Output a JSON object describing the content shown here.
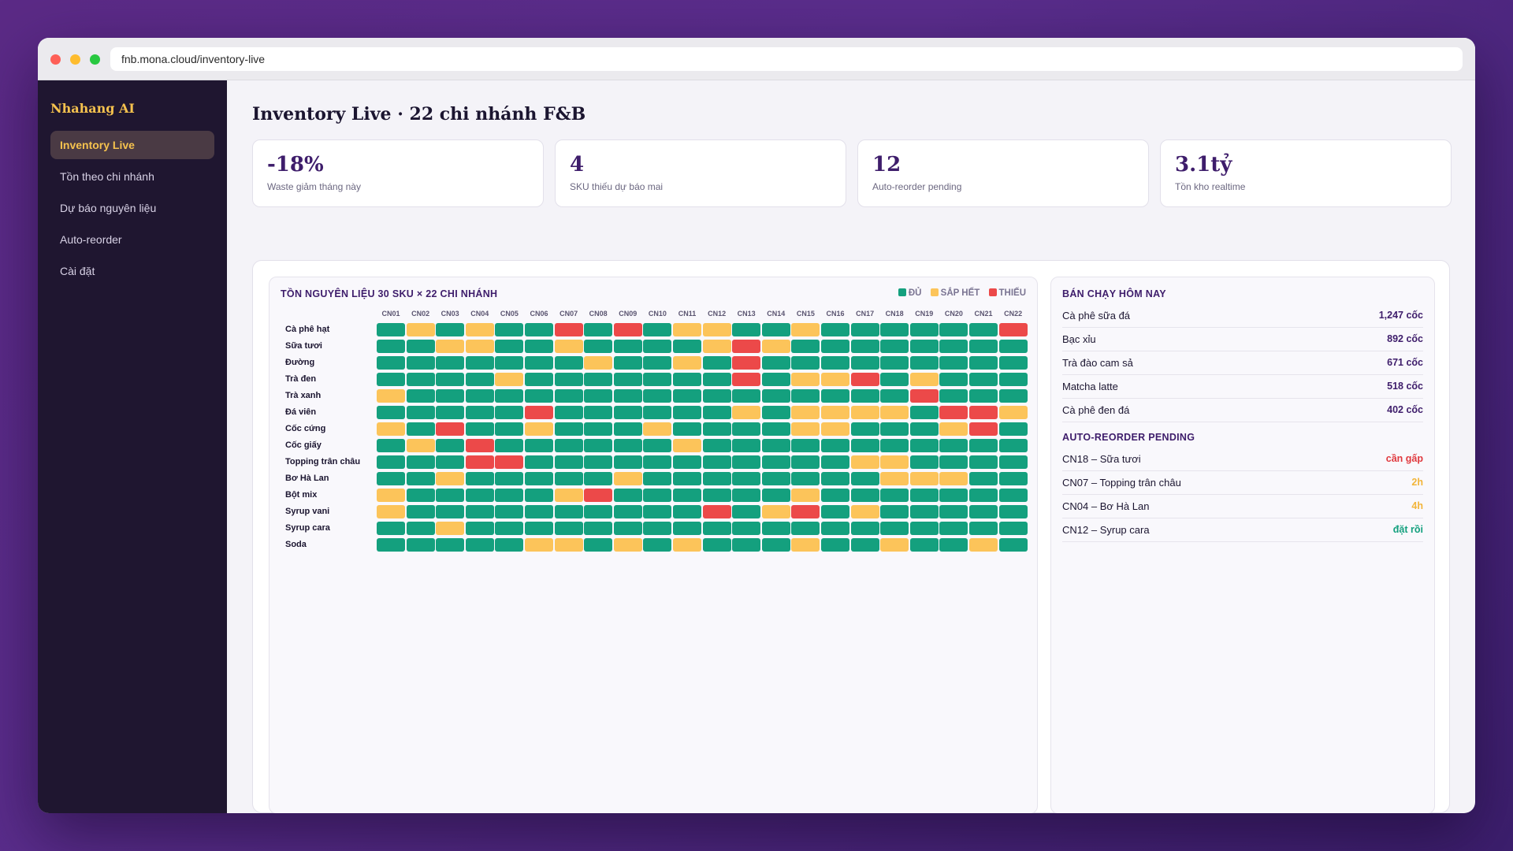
{
  "browser": {
    "url": "fnb.mona.cloud/inventory-live"
  },
  "sidebar": {
    "brand": "Nhahang AI",
    "items": [
      {
        "label": "Inventory Live",
        "active": true
      },
      {
        "label": "Tồn theo chi nhánh",
        "active": false
      },
      {
        "label": "Dự báo nguyên liệu",
        "active": false
      },
      {
        "label": "Auto-reorder",
        "active": false
      },
      {
        "label": "Cài đặt",
        "active": false
      }
    ]
  },
  "page": {
    "title": "Inventory Live · 22 chi nhánh F&B"
  },
  "stats": [
    {
      "value": "-18%",
      "label": "Waste giảm tháng này"
    },
    {
      "value": "4",
      "label": "SKU thiếu dự báo mai"
    },
    {
      "value": "12",
      "label": "Auto-reorder pending"
    },
    {
      "value": "3.1tỷ",
      "label": "Tồn kho realtime"
    }
  ],
  "heatmap": {
    "title": "TỒN NGUYÊN LIỆU 30 SKU × 22 CHI NHÁNH",
    "legend": [
      {
        "key": "G",
        "label": "ĐỦ",
        "color": "#14a07e"
      },
      {
        "key": "Y",
        "label": "SẮP HẾT",
        "color": "#fcc45a"
      },
      {
        "key": "R",
        "label": "THIẾU",
        "color": "#ec4949"
      }
    ],
    "columns": [
      "CN01",
      "CN02",
      "CN03",
      "CN04",
      "CN05",
      "CN06",
      "CN07",
      "CN08",
      "CN09",
      "CN10",
      "CN11",
      "CN12",
      "CN13",
      "CN14",
      "CN15",
      "CN16",
      "CN17",
      "CN18",
      "CN19",
      "CN20",
      "CN21",
      "CN22"
    ],
    "rows": [
      {
        "label": "Cà phê hạt",
        "cells": "GYGYGGRGRGYYGGYGGGGGGR"
      },
      {
        "label": "Sữa tươi",
        "cells": "GGYYGGYGGGGYRYGGGGGGGG"
      },
      {
        "label": "Đường",
        "cells": "GGGGGGGYGGYGRGGGGGGGGG"
      },
      {
        "label": "Trà đen",
        "cells": "GGGGYGGGGGGGRGYYRGYGGG"
      },
      {
        "label": "Trà xanh",
        "cells": "YGGGGGGGGGGGGGGGGGRGGG"
      },
      {
        "label": "Đá viên",
        "cells": "GGGGGRGGGGGGYGYYYYGRRY"
      },
      {
        "label": "Cốc cứng",
        "cells": "YGRGGYGGGYGGGGYYGGGYRG"
      },
      {
        "label": "Cốc giấy",
        "cells": "GYGRGGGGGGYGGGGGGGGGGG"
      },
      {
        "label": "Topping trân châu",
        "cells": "GGGRRGGGGGGGGGGGYYGGGG"
      },
      {
        "label": "Bơ Hà Lan",
        "cells": "GGYGGGGGYGGGGGGGGYYYGG"
      },
      {
        "label": "Bột mix",
        "cells": "YGGGGGYRGGGGGGYGGGGGGG"
      },
      {
        "label": "Syrup vani",
        "cells": "YGGGGGGGGGGRGYRGYGGGGG"
      },
      {
        "label": "Syrup cara",
        "cells": "GGYGGGGGGGGGGGGGGGGGGG"
      },
      {
        "label": "Soda",
        "cells": "GGGGGYYGYGYGGGYGGYGGYG"
      }
    ]
  },
  "best_sellers": {
    "title": "BÁN CHẠY HÔM NAY",
    "items": [
      {
        "name": "Cà phê sữa đá",
        "qty": "1,247 cốc"
      },
      {
        "name": "Bạc xỉu",
        "qty": "892 cốc"
      },
      {
        "name": "Trà đào cam sả",
        "qty": "671 cốc"
      },
      {
        "name": "Matcha latte",
        "qty": "518 cốc"
      },
      {
        "name": "Cà phê đen đá",
        "qty": "402 cốc"
      }
    ]
  },
  "reorder": {
    "title": "AUTO-REORDER PENDING",
    "items": [
      {
        "name": "CN18 – Sữa tươi",
        "status": "cần gấp",
        "color": "#e0393e"
      },
      {
        "name": "CN07 – Topping trân châu",
        "status": "2h",
        "color": "#f2b53a"
      },
      {
        "name": "CN04 – Bơ Hà Lan",
        "status": "4h",
        "color": "#f2b53a"
      },
      {
        "name": "CN12 – Syrup cara",
        "status": "đặt rồi",
        "color": "#14a07e"
      }
    ]
  }
}
